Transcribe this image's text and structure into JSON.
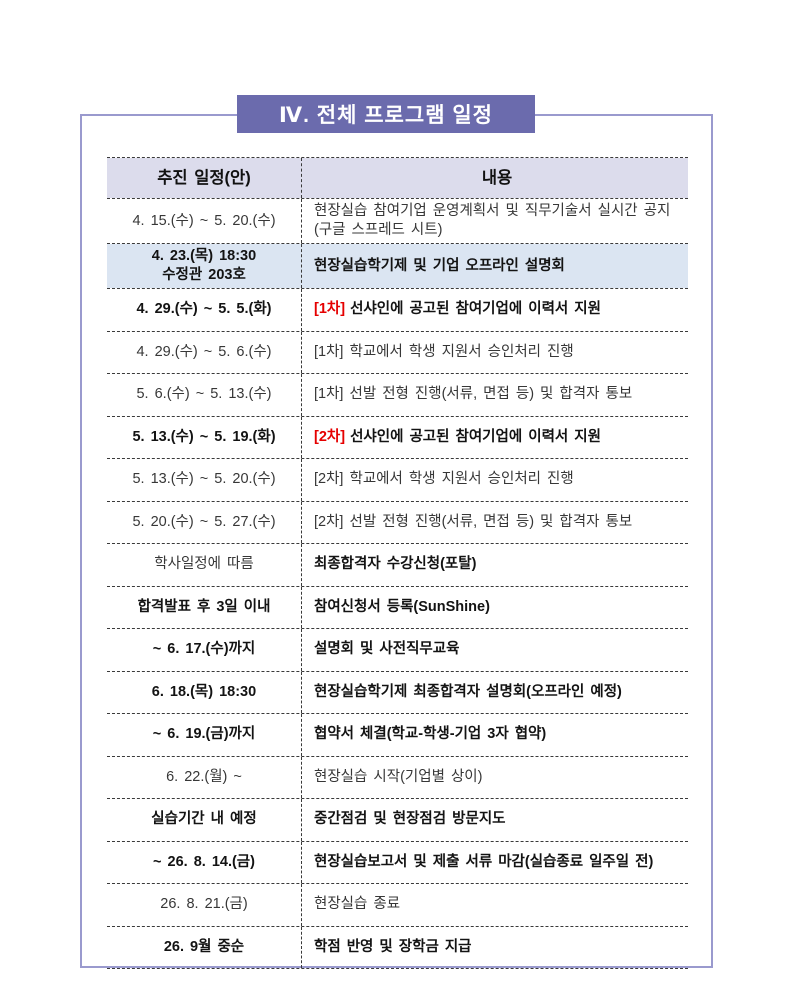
{
  "title": "Ⅳ. 전체 프로그램 일정",
  "colors": {
    "banner_bg": "#6b6bad",
    "frame_border": "#9a9ace",
    "header_bg": "#dcdcec",
    "highlight_bg": "#dbe5f2",
    "tag_red": "#e50000"
  },
  "table": {
    "header": {
      "schedule": "추진 일정(안)",
      "content": "내용"
    },
    "rows": [
      {
        "date_lines": [
          "4. 15.(수) ~ 5. 20.(수)"
        ],
        "content_lines": [
          "현장실습 참여기업 운영계획서 및 직무기술서 실시간 공지",
          "(구글 스프레드 시트)"
        ],
        "date_bold": false,
        "content_bold": false,
        "tag": "",
        "tag_red": false,
        "highlight": false
      },
      {
        "date_lines": [
          "4. 23.(목) 18:30",
          "수정관 203호"
        ],
        "content_lines": [
          "현장실습학기제 및 기업 오프라인 설명회"
        ],
        "date_bold": true,
        "content_bold": true,
        "tag": "",
        "tag_red": false,
        "highlight": true
      },
      {
        "date_lines": [
          "4. 29.(수) ~ 5. 5.(화)"
        ],
        "content_lines": [
          "선샤인에 공고된 참여기업에 이력서 지원"
        ],
        "date_bold": true,
        "content_bold": true,
        "tag": "[1차]",
        "tag_red": true,
        "highlight": false
      },
      {
        "date_lines": [
          "4. 29.(수) ~ 5. 6.(수)"
        ],
        "content_lines": [
          "[1차] 학교에서 학생 지원서 승인처리 진행"
        ],
        "date_bold": false,
        "content_bold": false,
        "tag": "",
        "tag_red": false,
        "highlight": false
      },
      {
        "date_lines": [
          "5. 6.(수) ~ 5. 13.(수)"
        ],
        "content_lines": [
          "[1차] 선발 전형 진행(서류, 면접 등) 및 합격자 통보"
        ],
        "date_bold": false,
        "content_bold": false,
        "tag": "",
        "tag_red": false,
        "highlight": false
      },
      {
        "date_lines": [
          "5. 13.(수) ~ 5. 19.(화)"
        ],
        "content_lines": [
          "선샤인에 공고된 참여기업에 이력서 지원"
        ],
        "date_bold": true,
        "content_bold": true,
        "tag": "[2차]",
        "tag_red": true,
        "highlight": false
      },
      {
        "date_lines": [
          "5. 13.(수) ~ 5. 20.(수)"
        ],
        "content_lines": [
          "[2차] 학교에서 학생 지원서 승인처리 진행"
        ],
        "date_bold": false,
        "content_bold": false,
        "tag": "",
        "tag_red": false,
        "highlight": false
      },
      {
        "date_lines": [
          "5. 20.(수) ~ 5. 27.(수)"
        ],
        "content_lines": [
          "[2차] 선발 전형 진행(서류, 면접 등) 및 합격자 통보"
        ],
        "date_bold": false,
        "content_bold": false,
        "tag": "",
        "tag_red": false,
        "highlight": false
      },
      {
        "date_lines": [
          "학사일정에 따름"
        ],
        "content_lines": [
          "최종합격자 수강신청(포탈)"
        ],
        "date_bold": false,
        "content_bold": true,
        "tag": "",
        "tag_red": false,
        "highlight": false
      },
      {
        "date_lines": [
          "합격발표 후 3일 이내"
        ],
        "content_lines": [
          "참여신청서 등록(SunShine)"
        ],
        "date_bold": true,
        "content_bold": true,
        "tag": "",
        "tag_red": false,
        "highlight": false
      },
      {
        "date_lines": [
          "~ 6. 17.(수)까지"
        ],
        "content_lines": [
          "설명회 및 사전직무교육"
        ],
        "date_bold": true,
        "content_bold": true,
        "tag": "",
        "tag_red": false,
        "highlight": false
      },
      {
        "date_lines": [
          "6. 18.(목) 18:30"
        ],
        "content_lines": [
          "현장실습학기제 최종합격자 설명회(오프라인 예정)"
        ],
        "date_bold": true,
        "content_bold": true,
        "tag": "",
        "tag_red": false,
        "highlight": false
      },
      {
        "date_lines": [
          "~ 6. 19.(금)까지"
        ],
        "content_lines": [
          "협약서 체결(학교-학생-기업 3자 협약)"
        ],
        "date_bold": true,
        "content_bold": true,
        "tag": "",
        "tag_red": false,
        "highlight": false
      },
      {
        "date_lines": [
          "6. 22.(월) ~"
        ],
        "content_lines": [
          "현장실습 시작(기업별 상이)"
        ],
        "date_bold": false,
        "content_bold": false,
        "tag": "",
        "tag_red": false,
        "highlight": false
      },
      {
        "date_lines": [
          "실습기간 내 예정"
        ],
        "content_lines": [
          "중간점검 및 현장점검 방문지도"
        ],
        "date_bold": true,
        "content_bold": true,
        "tag": "",
        "tag_red": false,
        "highlight": false
      },
      {
        "date_lines": [
          "~ 26. 8. 14.(금)"
        ],
        "content_lines": [
          "현장실습보고서 및 제출 서류 마감(실습종료 일주일 전)"
        ],
        "date_bold": true,
        "content_bold": true,
        "tag": "",
        "tag_red": false,
        "highlight": false
      },
      {
        "date_lines": [
          "26. 8. 21.(금)"
        ],
        "content_lines": [
          "현장실습 종료"
        ],
        "date_bold": false,
        "content_bold": false,
        "tag": "",
        "tag_red": false,
        "highlight": false
      },
      {
        "date_lines": [
          "26. 9월 중순"
        ],
        "content_lines": [
          "학점 반영 및 장학금 지급"
        ],
        "date_bold": true,
        "content_bold": true,
        "tag": "",
        "tag_red": false,
        "highlight": false
      }
    ]
  }
}
